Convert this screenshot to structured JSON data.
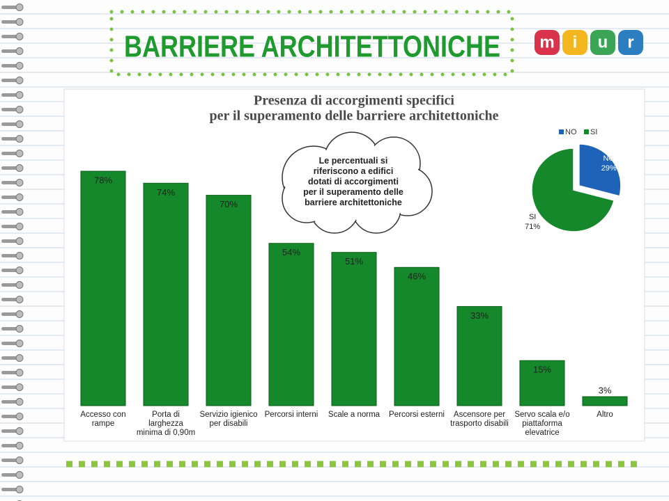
{
  "slide_title": "BARRIERE ARCHITETTONICHE",
  "logo_letters": [
    "m",
    "i",
    "u",
    "r"
  ],
  "callout": "Le percentuali si riferiscono a edifici dotati di accorgimenti per il superamento delle barriere architettoniche",
  "chart_data": [
    {
      "type": "bar",
      "title": [
        "Presenza di accorgimenti specifici",
        "per il superamento delle barriere architettoniche"
      ],
      "categories": [
        "Accesso con rampe",
        "Porta di larghezza minima di 0,90m",
        "Servizio igienico per disabili",
        "Percorsi interni",
        "Scale a norma",
        "Percorsi esterni",
        "Ascensore per trasporto disabili",
        "Servo scala e/o piattaforma elevatrice",
        "Altro"
      ],
      "values": [
        78,
        74,
        70,
        54,
        51,
        46,
        33,
        15,
        3
      ],
      "value_labels": [
        "78%",
        "74%",
        "70%",
        "54%",
        "51%",
        "46%",
        "33%",
        "15%",
        "3%"
      ],
      "color": "#14882a",
      "ylim": [
        0,
        100
      ]
    },
    {
      "type": "pie",
      "categories": [
        "NO",
        "SI"
      ],
      "values": [
        29,
        71
      ],
      "value_labels": [
        "29%",
        "71%"
      ],
      "colors": [
        "#1f63b8",
        "#14882a"
      ],
      "legend": "top"
    }
  ]
}
